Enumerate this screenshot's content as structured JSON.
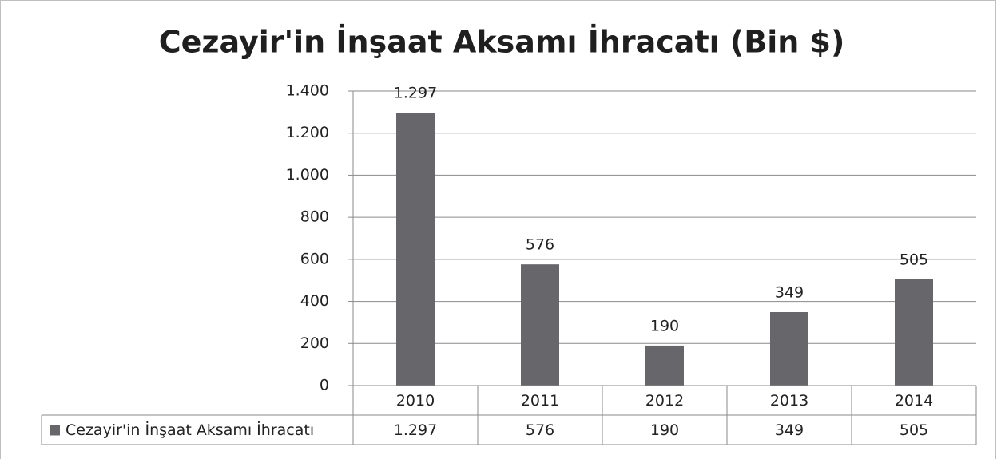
{
  "chart_data": {
    "type": "bar",
    "title": "Cezayir'in İnşaat Aksamı İhracatı (Bin $)",
    "categories": [
      "2010",
      "2011",
      "2012",
      "2013",
      "2014"
    ],
    "series": [
      {
        "name": "Cezayir'in İnşaat Aksamı İhracatı",
        "color": "#67666b",
        "values": [
          1297,
          576,
          190,
          349,
          505
        ],
        "value_labels": [
          "1.297",
          "576",
          "190",
          "349",
          "505"
        ]
      }
    ],
    "ylim": [
      0,
      1400
    ],
    "yticks": [
      0,
      200,
      400,
      600,
      800,
      {
        "value": 1000,
        "label": "1.000"
      },
      {
        "value": 1200,
        "label": "1.200"
      },
      {
        "value": 1400,
        "label": "1.400"
      }
    ],
    "grid": true,
    "data_table": true
  }
}
